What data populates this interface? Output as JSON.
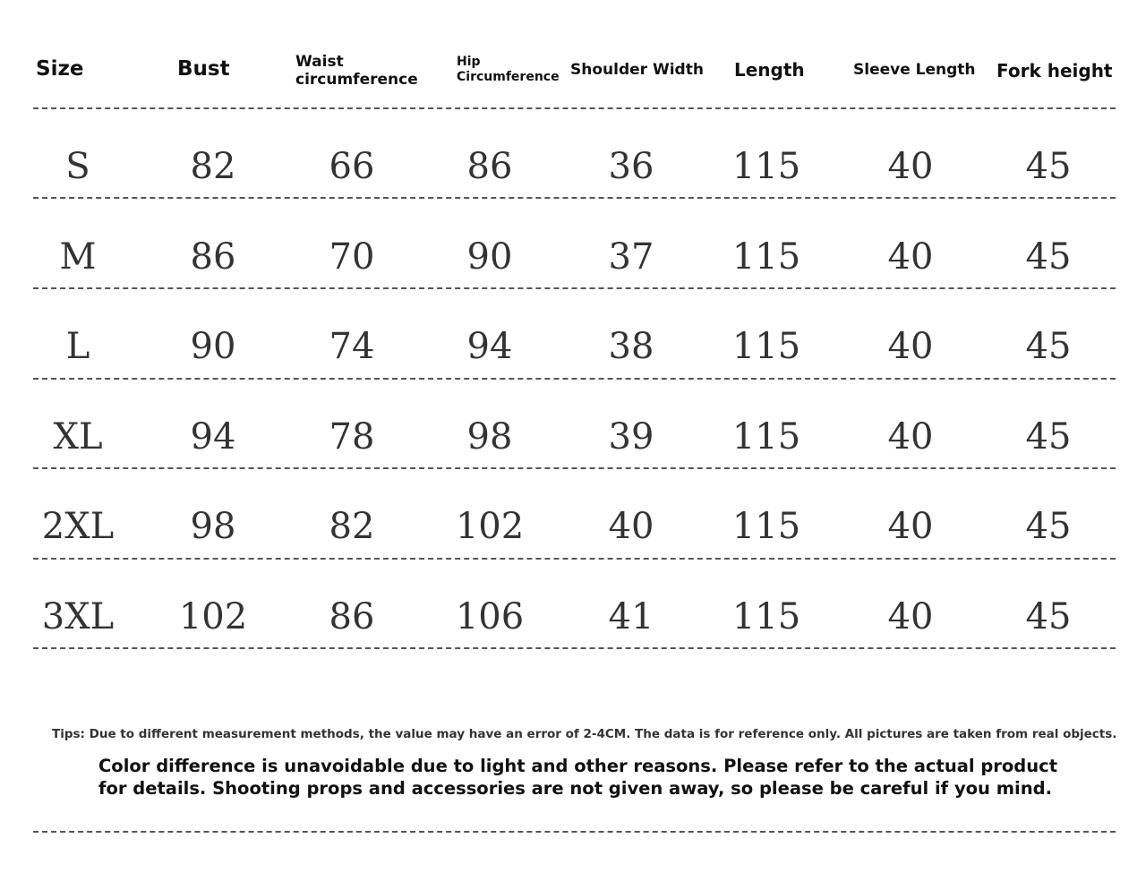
{
  "table": {
    "headers": [
      "Size",
      "Bust",
      "Waist circumference",
      "Hip Circumference",
      "Shoulder Width",
      "Length",
      "Sleeve Length",
      "Fork height"
    ],
    "rows": [
      [
        "S",
        "82",
        "66",
        "86",
        "36",
        "115",
        "40",
        "45"
      ],
      [
        "M",
        "86",
        "70",
        "90",
        "37",
        "115",
        "40",
        "45"
      ],
      [
        "L",
        "90",
        "74",
        "94",
        "38",
        "115",
        "40",
        "45"
      ],
      [
        "XL",
        "94",
        "78",
        "98",
        "39",
        "115",
        "40",
        "45"
      ],
      [
        "2XL",
        "98",
        "82",
        "102",
        "40",
        "115",
        "40",
        "45"
      ],
      [
        "3XL",
        "102",
        "86",
        "106",
        "41",
        "115",
        "40",
        "45"
      ]
    ]
  },
  "notes": {
    "tips": "Tips: Due to different measurement methods, the value may have an error of 2-4CM. The data is for reference only. All pictures are taken from real objects.",
    "disclaimer": "Color difference is unavoidable due to light and other reasons. Please refer to the actual product for details. Shooting props and accessories are not given away, so please be careful if you mind."
  }
}
